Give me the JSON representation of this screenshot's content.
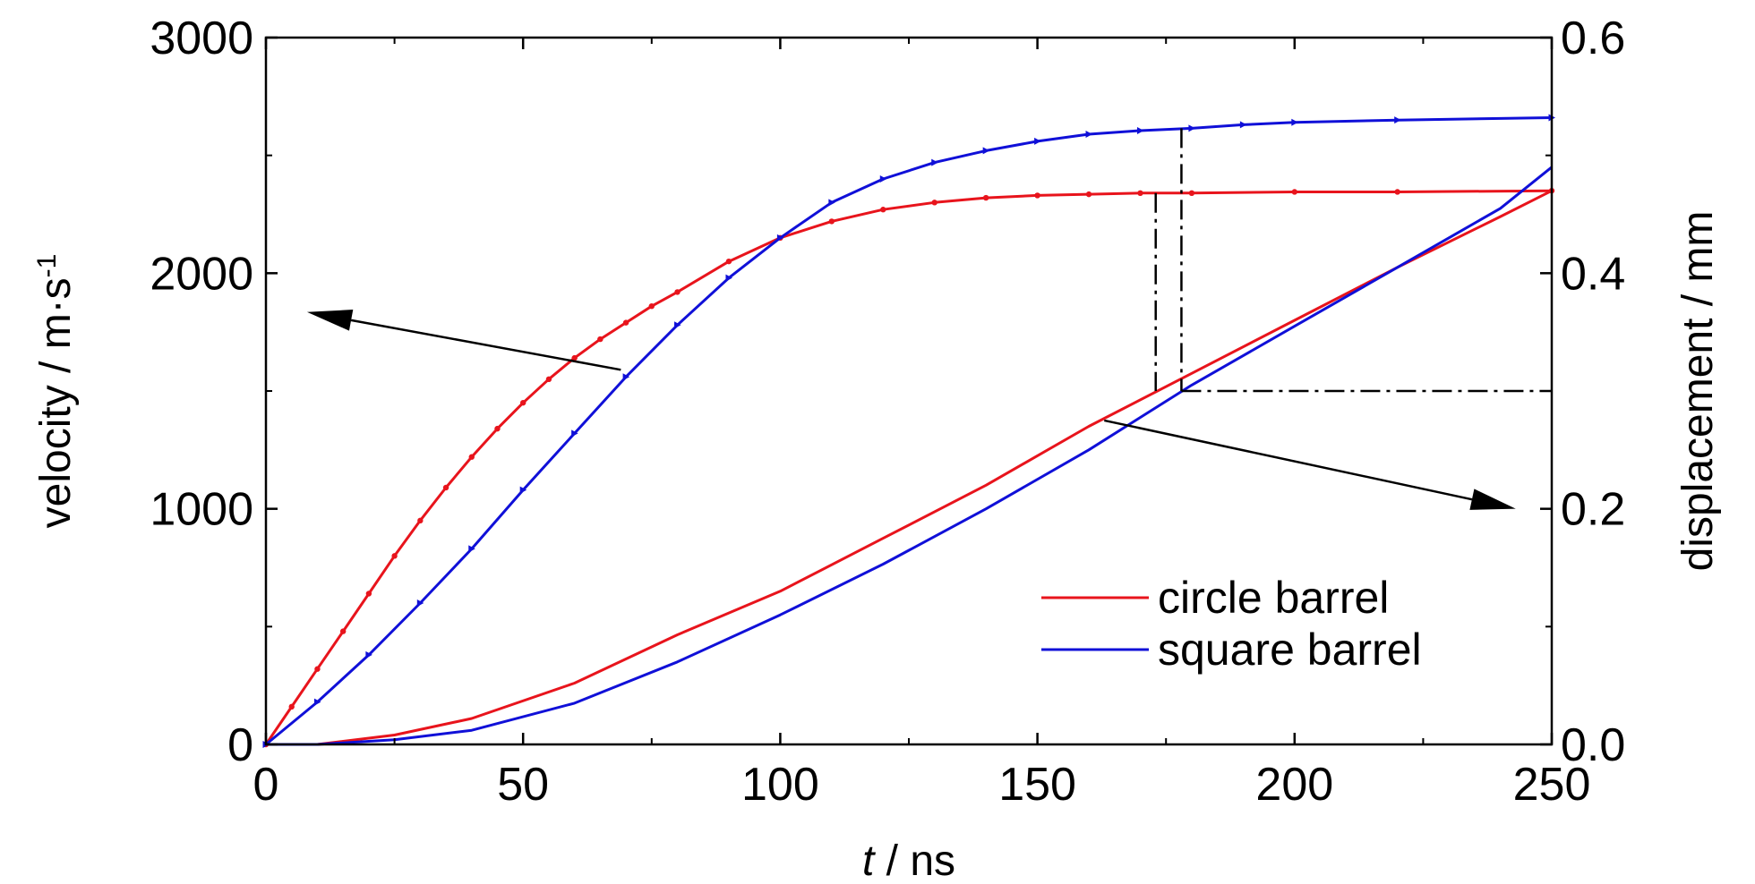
{
  "chart_data": {
    "type": "line",
    "title": "",
    "xlabel_italic": "t",
    "xlabel_rest": " / ns",
    "ylabel_left": "velocity / m·s",
    "ylabel_left_sup": "-1",
    "ylabel_right": "displacement / mm",
    "xlim": [
      0,
      250
    ],
    "ylim_left": [
      0,
      3000
    ],
    "ylim_right": [
      0,
      0.6
    ],
    "x_ticks": [
      "0",
      "50",
      "100",
      "150",
      "200",
      "250"
    ],
    "y_left_ticks": [
      "0",
      "1000",
      "2000",
      "3000"
    ],
    "y_right_ticks": [
      "0.0",
      "0.2",
      "0.4",
      "0.6"
    ],
    "grid": false,
    "legend_position": "lower-right",
    "colors": {
      "circle": "#e8141c",
      "square": "#1010d8",
      "axis": "#000000"
    },
    "series": [
      {
        "name": "circle barrel",
        "axis": "left",
        "color": "#e8141c",
        "marker": "dot",
        "x": [
          0,
          5,
          10,
          15,
          20,
          25,
          30,
          35,
          40,
          45,
          50,
          55,
          60,
          65,
          70,
          75,
          80,
          90,
          100,
          110,
          120,
          130,
          140,
          150,
          160,
          170,
          180,
          200,
          220,
          250
        ],
        "y": [
          0,
          160,
          320,
          480,
          640,
          800,
          950,
          1090,
          1220,
          1340,
          1450,
          1550,
          1640,
          1720,
          1790,
          1860,
          1920,
          2050,
          2150,
          2220,
          2270,
          2300,
          2320,
          2330,
          2335,
          2340,
          2340,
          2345,
          2345,
          2350
        ]
      },
      {
        "name": "square barrel",
        "axis": "left",
        "color": "#1010d8",
        "marker": "triangle",
        "x": [
          0,
          10,
          20,
          30,
          40,
          50,
          60,
          70,
          80,
          90,
          100,
          110,
          120,
          130,
          140,
          150,
          160,
          170,
          180,
          190,
          200,
          220,
          250
        ],
        "y": [
          0,
          180,
          380,
          600,
          830,
          1080,
          1320,
          1560,
          1780,
          1980,
          2150,
          2300,
          2400,
          2470,
          2520,
          2560,
          2590,
          2605,
          2615,
          2630,
          2640,
          2650,
          2660
        ]
      },
      {
        "name": "circle barrel",
        "axis": "right",
        "color": "#e8141c",
        "marker": "none",
        "x": [
          0,
          10,
          25,
          40,
          60,
          80,
          100,
          120,
          140,
          160,
          180,
          200,
          220,
          240,
          250
        ],
        "y": [
          0,
          0.0,
          0.008,
          0.022,
          0.052,
          0.093,
          0.13,
          0.175,
          0.22,
          0.27,
          0.315,
          0.36,
          0.405,
          0.448,
          0.47
        ]
      },
      {
        "name": "square barrel",
        "axis": "right",
        "color": "#1010d8",
        "marker": "none",
        "x": [
          0,
          10,
          25,
          40,
          60,
          80,
          100,
          120,
          140,
          160,
          180,
          200,
          220,
          240,
          250
        ],
        "y": [
          0,
          0.0,
          0.004,
          0.012,
          0.035,
          0.07,
          0.11,
          0.153,
          0.2,
          0.25,
          0.305,
          0.355,
          0.405,
          0.455,
          0.49
        ]
      }
    ],
    "annotations": {
      "left_arrow": {
        "from": [
          69,
          1590
        ],
        "to": [
          8,
          1835
        ],
        "axis": "left"
      },
      "right_arrow": {
        "from": [
          163,
          0.275
        ],
        "to": [
          243,
          0.2
        ],
        "axis": "right"
      },
      "guide_circle": {
        "x": 173,
        "y_left": 2340,
        "y_right": 0.3
      },
      "guide_square": {
        "x": 178,
        "y_left": 2615,
        "y_right": 0.3
      },
      "guide_h": {
        "x_start": 178,
        "x_end": 250,
        "y_right": 0.3
      }
    }
  }
}
